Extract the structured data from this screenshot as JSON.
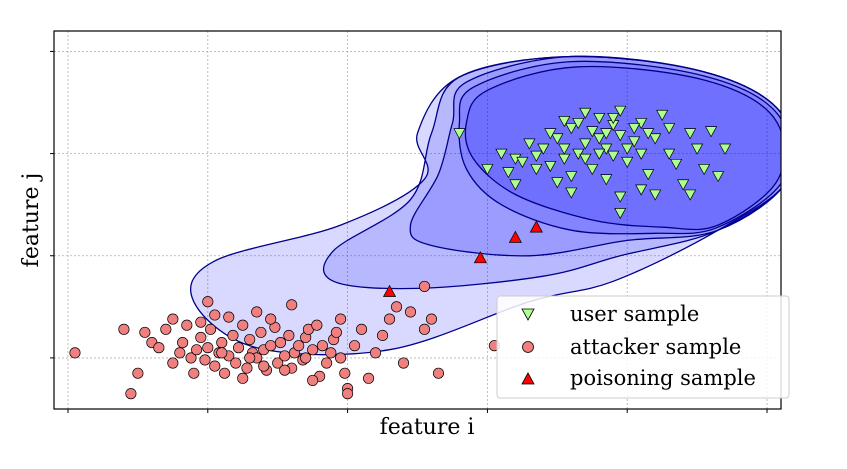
{
  "chart_data": {
    "type": "scatter",
    "title": "",
    "xlabel": "feature i",
    "ylabel": "feature j",
    "xlim": [
      -1.1,
      4.1
    ],
    "ylim": [
      -1.5,
      2.2
    ],
    "xticks": [
      -1,
      0,
      1,
      2,
      3,
      4
    ],
    "yticks": [
      -1,
      0,
      1,
      2
    ],
    "tick_labels_shown": false,
    "grid": true,
    "legend_position": "bottom-right",
    "colors": {
      "user": "#adff8f",
      "attacker": "#f08080",
      "poisoning": "#ff0000",
      "region_fill": "#0000ff",
      "region_edge": "#00008b"
    },
    "legend": [
      {
        "name": "user sample",
        "series": "user"
      },
      {
        "name": "attacker sample",
        "series": "attacker"
      },
      {
        "name": "poisoning sample",
        "series": "poisoning"
      }
    ],
    "series": [
      {
        "key": "user",
        "marker": "triangle-down",
        "points": [
          [
            2.8,
            1.35
          ],
          [
            2.9,
            1.28
          ],
          [
            2.75,
            1.22
          ],
          [
            2.95,
            1.18
          ],
          [
            3.1,
            1.3
          ],
          [
            2.6,
            1.25
          ],
          [
            2.85,
            1.05
          ],
          [
            3.05,
            1.12
          ],
          [
            2.7,
            1.1
          ],
          [
            2.5,
            1.15
          ],
          [
            2.65,
            1.0
          ],
          [
            3.2,
            1.15
          ],
          [
            2.4,
            1.05
          ],
          [
            2.55,
            0.95
          ],
          [
            2.9,
            0.98
          ],
          [
            3.0,
            0.92
          ],
          [
            3.3,
            1.0
          ],
          [
            2.45,
            0.88
          ],
          [
            2.75,
            0.85
          ],
          [
            3.15,
            0.8
          ],
          [
            2.6,
            0.78
          ],
          [
            2.85,
            0.75
          ],
          [
            3.35,
            0.9
          ],
          [
            2.35,
            0.98
          ],
          [
            2.2,
            0.95
          ],
          [
            2.3,
            1.1
          ],
          [
            3.5,
            1.05
          ],
          [
            3.45,
            1.2
          ],
          [
            2.95,
            1.42
          ],
          [
            2.7,
            1.4
          ],
          [
            2.55,
            1.32
          ],
          [
            3.25,
            1.38
          ],
          [
            3.6,
            1.22
          ],
          [
            2.1,
            1.0
          ],
          [
            2.15,
            0.82
          ],
          [
            2.25,
            0.92
          ],
          [
            3.1,
            0.65
          ],
          [
            2.5,
            0.72
          ],
          [
            2.95,
            0.58
          ],
          [
            3.4,
            0.7
          ],
          [
            3.55,
            0.85
          ],
          [
            3.05,
            1.25
          ],
          [
            2.8,
            1.15
          ],
          [
            3.15,
            1.2
          ],
          [
            2.35,
            0.85
          ],
          [
            2.65,
            1.3
          ],
          [
            2.9,
            1.35
          ],
          [
            3.0,
            1.05
          ],
          [
            2.45,
            1.2
          ],
          [
            2.7,
            0.95
          ],
          [
            3.3,
            1.25
          ],
          [
            2.2,
            0.7
          ],
          [
            1.8,
            1.2
          ],
          [
            2.0,
            0.85
          ],
          [
            3.2,
            0.6
          ],
          [
            2.6,
            0.62
          ],
          [
            3.45,
            0.6
          ],
          [
            2.95,
            0.42
          ],
          [
            3.7,
            1.05
          ],
          [
            3.65,
            0.78
          ],
          [
            2.8,
            1.0
          ],
          [
            2.85,
            1.2
          ],
          [
            3.1,
            1.0
          ],
          [
            2.55,
            1.05
          ]
        ]
      },
      {
        "key": "attacker",
        "marker": "circle",
        "points": [
          [
            -0.95,
            -0.95
          ],
          [
            -0.55,
            -1.35
          ],
          [
            -0.5,
            -1.15
          ],
          [
            -0.45,
            -0.75
          ],
          [
            -0.4,
            -0.85
          ],
          [
            -0.35,
            -0.9
          ],
          [
            -0.3,
            -0.72
          ],
          [
            -0.25,
            -1.05
          ],
          [
            -0.2,
            -0.95
          ],
          [
            -0.18,
            -0.85
          ],
          [
            -0.15,
            -0.68
          ],
          [
            -0.12,
            -1.0
          ],
          [
            -0.1,
            -1.15
          ],
          [
            -0.08,
            -0.92
          ],
          [
            -0.05,
            -0.8
          ],
          [
            -0.02,
            -1.02
          ],
          [
            0.0,
            -0.9
          ],
          [
            0.02,
            -0.72
          ],
          [
            0.05,
            -1.08
          ],
          [
            0.08,
            -0.95
          ],
          [
            0.1,
            -0.85
          ],
          [
            0.12,
            -1.15
          ],
          [
            0.15,
            -0.98
          ],
          [
            0.18,
            -0.78
          ],
          [
            0.2,
            -1.05
          ],
          [
            0.22,
            -0.9
          ],
          [
            0.25,
            -0.68
          ],
          [
            0.28,
            -1.1
          ],
          [
            0.3,
            -0.82
          ],
          [
            0.32,
            -0.95
          ],
          [
            0.35,
            -1.0
          ],
          [
            0.38,
            -0.75
          ],
          [
            0.4,
            -0.92
          ],
          [
            0.42,
            -1.12
          ],
          [
            0.45,
            -0.88
          ],
          [
            0.48,
            -0.7
          ],
          [
            0.5,
            -1.05
          ],
          [
            0.52,
            -0.85
          ],
          [
            0.55,
            -0.98
          ],
          [
            0.58,
            -0.78
          ],
          [
            0.6,
            -1.1
          ],
          [
            0.62,
            -0.95
          ],
          [
            0.65,
            -0.88
          ],
          [
            0.68,
            -1.02
          ],
          [
            0.7,
            -0.8
          ],
          [
            0.72,
            -0.72
          ],
          [
            0.75,
            -0.92
          ],
          [
            0.78,
            -0.68
          ],
          [
            0.8,
            -1.18
          ],
          [
            0.82,
            -0.88
          ],
          [
            0.85,
            -1.05
          ],
          [
            0.88,
            -0.95
          ],
          [
            0.9,
            -0.82
          ],
          [
            0.92,
            -0.75
          ],
          [
            0.95,
            -1.0
          ],
          [
            0.98,
            -1.15
          ],
          [
            1.0,
            -1.3
          ],
          [
            1.05,
            -0.88
          ],
          [
            1.1,
            -0.72
          ],
          [
            1.15,
            -1.2
          ],
          [
            1.2,
            -0.95
          ],
          [
            1.25,
            -0.78
          ],
          [
            1.35,
            -0.5
          ],
          [
            1.4,
            -1.05
          ],
          [
            1.45,
            -0.55
          ],
          [
            1.55,
            -0.3
          ],
          [
            1.55,
            -0.72
          ],
          [
            1.6,
            -0.62
          ],
          [
            1.65,
            -1.15
          ],
          [
            1.75,
            -1.62
          ],
          [
            2.05,
            -0.88
          ],
          [
            0.0,
            -0.45
          ],
          [
            0.05,
            -0.58
          ],
          [
            0.35,
            -0.55
          ],
          [
            -0.25,
            -0.62
          ],
          [
            -0.05,
            -0.65
          ],
          [
            0.15,
            -0.6
          ],
          [
            0.45,
            -0.62
          ],
          [
            0.6,
            -0.48
          ],
          [
            0.95,
            -0.62
          ],
          [
            1.3,
            -0.62
          ],
          [
            0.25,
            -1.2
          ],
          [
            0.75,
            -1.22
          ],
          [
            0.55,
            -1.12
          ],
          [
            1.0,
            -1.35
          ],
          [
            -0.6,
            -0.72
          ],
          [
            0.1,
            -0.95
          ],
          [
            0.3,
            -1.0
          ],
          [
            0.7,
            -1.0
          ],
          [
            0.4,
            -1.08
          ]
        ]
      },
      {
        "key": "poisoning",
        "marker": "triangle-up",
        "points": [
          [
            1.3,
            -0.35
          ],
          [
            1.95,
            -0.02
          ],
          [
            2.2,
            0.18
          ],
          [
            2.35,
            0.28
          ]
        ]
      }
    ]
  }
}
